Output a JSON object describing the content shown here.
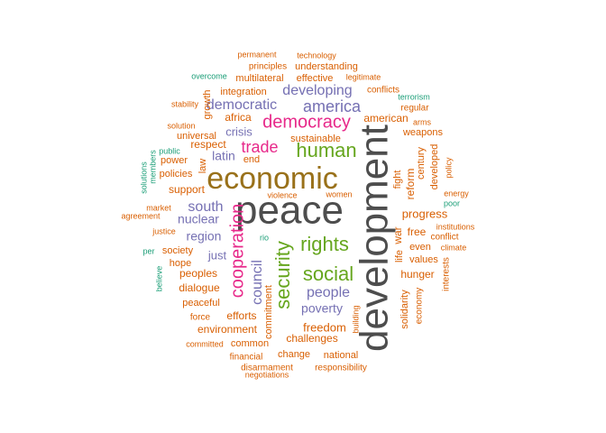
{
  "colors": {
    "grey": "#4d4d4d",
    "brown": "#99711a",
    "orange": "#d95f02",
    "teal": "#1b9e77",
    "purple": "#7570b3",
    "magenta": "#e7298a",
    "green": "#66a61e"
  },
  "words": [
    {
      "text": "peace",
      "color": "grey",
      "weight": 44
    },
    {
      "text": "development",
      "color": "grey",
      "weight": 44
    },
    {
      "text": "economic",
      "color": "brown",
      "weight": 34
    },
    {
      "text": "human",
      "color": "green",
      "weight": 22
    },
    {
      "text": "democracy",
      "color": "magenta",
      "weight": 20
    },
    {
      "text": "rights",
      "color": "green",
      "weight": 22
    },
    {
      "text": "social",
      "color": "green",
      "weight": 22
    },
    {
      "text": "security",
      "color": "green",
      "weight": 22
    },
    {
      "text": "cooperation",
      "color": "magenta",
      "weight": 20
    },
    {
      "text": "america",
      "color": "purple",
      "weight": 18
    },
    {
      "text": "developing",
      "color": "purple",
      "weight": 16
    },
    {
      "text": "trade",
      "color": "magenta",
      "weight": 18
    },
    {
      "text": "people",
      "color": "purple",
      "weight": 16
    },
    {
      "text": "south",
      "color": "purple",
      "weight": 16
    },
    {
      "text": "democratic",
      "color": "purple",
      "weight": 16
    },
    {
      "text": "council",
      "color": "purple",
      "weight": 16
    },
    {
      "text": "nuclear",
      "color": "purple",
      "weight": 14
    },
    {
      "text": "region",
      "color": "purple",
      "weight": 14
    },
    {
      "text": "latin",
      "color": "purple",
      "weight": 14
    },
    {
      "text": "poverty",
      "color": "purple",
      "weight": 14
    },
    {
      "text": "crisis",
      "color": "purple",
      "weight": 13
    },
    {
      "text": "just",
      "color": "purple",
      "weight": 13
    },
    {
      "text": "freedom",
      "color": "orange",
      "weight": 13
    },
    {
      "text": "progress",
      "color": "orange",
      "weight": 13
    },
    {
      "text": "hunger",
      "color": "orange",
      "weight": 12
    },
    {
      "text": "challenges",
      "color": "orange",
      "weight": 12
    },
    {
      "text": "dialogue",
      "color": "orange",
      "weight": 12
    },
    {
      "text": "peoples",
      "color": "orange",
      "weight": 12
    },
    {
      "text": "efforts",
      "color": "orange",
      "weight": 12
    },
    {
      "text": "environment",
      "color": "orange",
      "weight": 12
    },
    {
      "text": "integration",
      "color": "orange",
      "weight": 11
    },
    {
      "text": "understanding",
      "color": "orange",
      "weight": 11
    },
    {
      "text": "multilateral",
      "color": "orange",
      "weight": 11
    },
    {
      "text": "effective",
      "color": "orange",
      "weight": 11
    },
    {
      "text": "principles",
      "color": "orange",
      "weight": 10
    },
    {
      "text": "technology",
      "color": "orange",
      "weight": 9
    },
    {
      "text": "permanent",
      "color": "orange",
      "weight": 9
    },
    {
      "text": "legitimate",
      "color": "orange",
      "weight": 9
    },
    {
      "text": "conflicts",
      "color": "orange",
      "weight": 10
    },
    {
      "text": "american",
      "color": "orange",
      "weight": 12
    },
    {
      "text": "weapons",
      "color": "orange",
      "weight": 11
    },
    {
      "text": "regular",
      "color": "orange",
      "weight": 10
    },
    {
      "text": "arms",
      "color": "orange",
      "weight": 9
    },
    {
      "text": "sustainable",
      "color": "orange",
      "weight": 11
    },
    {
      "text": "africa",
      "color": "orange",
      "weight": 12
    },
    {
      "text": "universal",
      "color": "orange",
      "weight": 11
    },
    {
      "text": "respect",
      "color": "orange",
      "weight": 12
    },
    {
      "text": "end",
      "color": "orange",
      "weight": 11
    },
    {
      "text": "power",
      "color": "orange",
      "weight": 11
    },
    {
      "text": "policies",
      "color": "orange",
      "weight": 11
    },
    {
      "text": "support",
      "color": "orange",
      "weight": 12
    },
    {
      "text": "solution",
      "color": "orange",
      "weight": 9
    },
    {
      "text": "stability",
      "color": "orange",
      "weight": 9
    },
    {
      "text": "growth",
      "color": "orange",
      "weight": 11
    },
    {
      "text": "law",
      "color": "orange",
      "weight": 11
    },
    {
      "text": "market",
      "color": "orange",
      "weight": 9
    },
    {
      "text": "agreement",
      "color": "orange",
      "weight": 9
    },
    {
      "text": "justice",
      "color": "orange",
      "weight": 9
    },
    {
      "text": "society",
      "color": "orange",
      "weight": 11
    },
    {
      "text": "hope",
      "color": "orange",
      "weight": 11
    },
    {
      "text": "peaceful",
      "color": "orange",
      "weight": 11
    },
    {
      "text": "force",
      "color": "orange",
      "weight": 10
    },
    {
      "text": "committed",
      "color": "orange",
      "weight": 9
    },
    {
      "text": "common",
      "color": "orange",
      "weight": 11
    },
    {
      "text": "financial",
      "color": "orange",
      "weight": 10
    },
    {
      "text": "disarmament",
      "color": "orange",
      "weight": 10
    },
    {
      "text": "negotiations",
      "color": "orange",
      "weight": 9
    },
    {
      "text": "change",
      "color": "orange",
      "weight": 11
    },
    {
      "text": "national",
      "color": "orange",
      "weight": 11
    },
    {
      "text": "responsibility",
      "color": "orange",
      "weight": 10
    },
    {
      "text": "commitment",
      "color": "orange",
      "weight": 11
    },
    {
      "text": "building",
      "color": "orange",
      "weight": 9
    },
    {
      "text": "violence",
      "color": "orange",
      "weight": 9
    },
    {
      "text": "women",
      "color": "orange",
      "weight": 9
    },
    {
      "text": "war",
      "color": "orange",
      "weight": 12
    },
    {
      "text": "life",
      "color": "orange",
      "weight": 11
    },
    {
      "text": "fight",
      "color": "orange",
      "weight": 11
    },
    {
      "text": "reform",
      "color": "orange",
      "weight": 12
    },
    {
      "text": "century",
      "color": "orange",
      "weight": 11
    },
    {
      "text": "developed",
      "color": "orange",
      "weight": 11
    },
    {
      "text": "free",
      "color": "orange",
      "weight": 12
    },
    {
      "text": "even",
      "color": "orange",
      "weight": 11
    },
    {
      "text": "values",
      "color": "orange",
      "weight": 11
    },
    {
      "text": "conflict",
      "color": "orange",
      "weight": 10
    },
    {
      "text": "institutions",
      "color": "orange",
      "weight": 9
    },
    {
      "text": "climate",
      "color": "orange",
      "weight": 9
    },
    {
      "text": "solidarity",
      "color": "orange",
      "weight": 11
    },
    {
      "text": "economy",
      "color": "orange",
      "weight": 10
    },
    {
      "text": "interests",
      "color": "orange",
      "weight": 10
    },
    {
      "text": "energy",
      "color": "orange",
      "weight": 9
    },
    {
      "text": "policy",
      "color": "orange",
      "weight": 9
    },
    {
      "text": "terrorism",
      "color": "teal",
      "weight": 9
    },
    {
      "text": "overcome",
      "color": "teal",
      "weight": 9
    },
    {
      "text": "public",
      "color": "teal",
      "weight": 9
    },
    {
      "text": "solutions",
      "color": "teal",
      "weight": 9
    },
    {
      "text": "members",
      "color": "teal",
      "weight": 9
    },
    {
      "text": "per",
      "color": "teal",
      "weight": 9
    },
    {
      "text": "believe",
      "color": "teal",
      "weight": 9
    },
    {
      "text": "rio",
      "color": "teal",
      "weight": 9
    },
    {
      "text": "poor",
      "color": "teal",
      "weight": 9
    }
  ]
}
